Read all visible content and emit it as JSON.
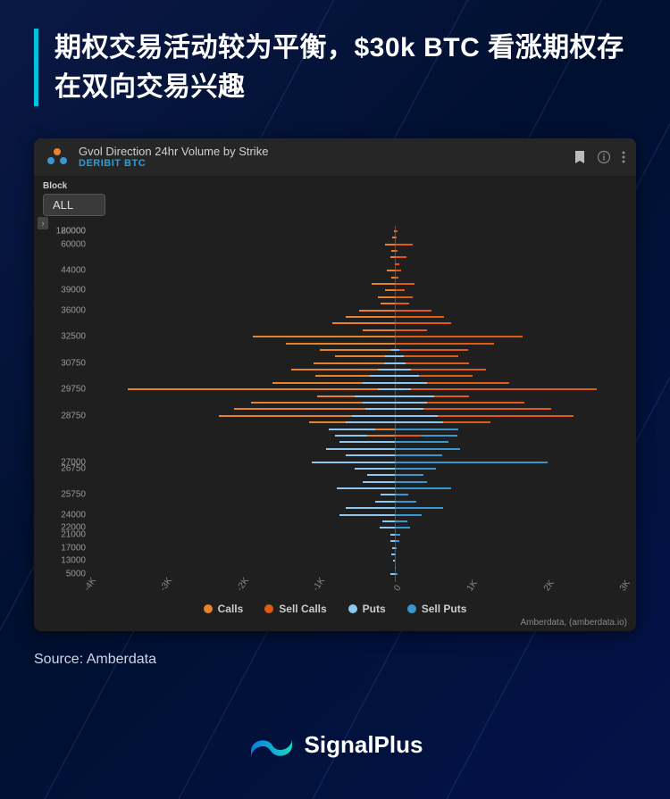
{
  "background_color": "#07154a",
  "title": "期权交易活动较为平衡，$30k BTC 看涨期权存在双向交易兴趣",
  "accent_color": "#00c2e0",
  "source_label": "Source: Amberdata",
  "brand_name": "SignalPlus",
  "chart": {
    "panel_bg": "#1f1f1f",
    "header_bg": "#262626",
    "title": "Gvol Direction 24hr Volume by Strike",
    "subtitle": "DERIBIT  BTC",
    "subtitle_color": "#2a9ed6",
    "block_label": "Block",
    "block_value": "ALL",
    "attribution": "Amberdata, (amberdata.io)",
    "legend": [
      {
        "label": "Calls",
        "color": "#e8822c"
      },
      {
        "label": "Sell Calls",
        "color": "#e05a16"
      },
      {
        "label": "Puts",
        "color": "#8ec8f0"
      },
      {
        "label": "Sell Puts",
        "color": "#3a95d0"
      }
    ],
    "x_axis": {
      "min": -4000,
      "max": 3000,
      "ticks": [
        -4000,
        -3000,
        -2000,
        -1000,
        0,
        1000,
        2000,
        3000
      ],
      "tick_labels": [
        "-4K",
        "-3K",
        "-2K",
        "-1K",
        "0",
        "1K",
        "2K",
        "3K"
      ],
      "tick_color": "#888",
      "zero_line_color": "#555"
    },
    "y_axis": {
      "ticks": [
        120000,
        80000,
        60000,
        44000,
        39000,
        36000,
        32500,
        30750,
        29750,
        28750,
        27000,
        26750,
        25750,
        24000,
        22000,
        21000,
        17000,
        13000,
        5000
      ],
      "tick_color": "#999"
    },
    "bars": [
      {
        "strike": 80000,
        "layers": [
          {
            "from": 0,
            "to": 40,
            "color": "#e05a16"
          },
          {
            "from": -10,
            "to": 0,
            "color": "#e8822c"
          }
        ]
      },
      {
        "strike": 70000,
        "layers": [
          {
            "from": -30,
            "to": 0,
            "color": "#e8822c"
          },
          {
            "from": 0,
            "to": 30,
            "color": "#e05a16"
          }
        ]
      },
      {
        "strike": 60000,
        "layers": [
          {
            "from": -120,
            "to": 0,
            "color": "#e8822c"
          },
          {
            "from": 0,
            "to": 240,
            "color": "#e05a16"
          }
        ]
      },
      {
        "strike": 55000,
        "layers": [
          {
            "from": -40,
            "to": 0,
            "color": "#e8822c"
          },
          {
            "from": 0,
            "to": 40,
            "color": "#e05a16"
          }
        ]
      },
      {
        "strike": 50000,
        "layers": [
          {
            "from": -50,
            "to": 0,
            "color": "#e8822c"
          },
          {
            "from": 0,
            "to": 160,
            "color": "#e05a16"
          }
        ]
      },
      {
        "strike": 48000,
        "layers": [
          {
            "from": 0,
            "to": 60,
            "color": "#e05a16"
          }
        ]
      },
      {
        "strike": 44000,
        "layers": [
          {
            "from": -100,
            "to": 0,
            "color": "#e8822c"
          },
          {
            "from": 0,
            "to": 90,
            "color": "#e05a16"
          }
        ]
      },
      {
        "strike": 42000,
        "layers": [
          {
            "from": -40,
            "to": 0,
            "color": "#e8822c"
          },
          {
            "from": 0,
            "to": 50,
            "color": "#e05a16"
          }
        ]
      },
      {
        "strike": 40000,
        "layers": [
          {
            "from": -300,
            "to": 0,
            "color": "#e8822c"
          },
          {
            "from": 0,
            "to": 260,
            "color": "#e05a16"
          }
        ]
      },
      {
        "strike": 39000,
        "layers": [
          {
            "from": -120,
            "to": 0,
            "color": "#e8822c"
          },
          {
            "from": 0,
            "to": 130,
            "color": "#e05a16"
          }
        ]
      },
      {
        "strike": 38000,
        "layers": [
          {
            "from": -220,
            "to": 0,
            "color": "#e8822c"
          },
          {
            "from": 0,
            "to": 240,
            "color": "#e05a16"
          }
        ]
      },
      {
        "strike": 37000,
        "layers": [
          {
            "from": -180,
            "to": 0,
            "color": "#e8822c"
          },
          {
            "from": 0,
            "to": 190,
            "color": "#e05a16"
          }
        ]
      },
      {
        "strike": 36000,
        "layers": [
          {
            "from": -460,
            "to": 0,
            "color": "#e8822c"
          },
          {
            "from": 0,
            "to": 480,
            "color": "#e05a16"
          }
        ]
      },
      {
        "strike": 35000,
        "layers": [
          {
            "from": -640,
            "to": 0,
            "color": "#e8822c"
          },
          {
            "from": 0,
            "to": 650,
            "color": "#e05a16"
          }
        ]
      },
      {
        "strike": 34000,
        "layers": [
          {
            "from": -820,
            "to": 0,
            "color": "#e8822c"
          },
          {
            "from": 0,
            "to": 740,
            "color": "#e05a16"
          }
        ]
      },
      {
        "strike": 33000,
        "layers": [
          {
            "from": -420,
            "to": 0,
            "color": "#e8822c"
          },
          {
            "from": 0,
            "to": 420,
            "color": "#e05a16"
          }
        ]
      },
      {
        "strike": 32500,
        "layers": [
          {
            "from": -1860,
            "to": 0,
            "color": "#e8822c"
          },
          {
            "from": 0,
            "to": 1680,
            "color": "#e05a16"
          }
        ]
      },
      {
        "strike": 32000,
        "layers": [
          {
            "from": -1420,
            "to": 0,
            "color": "#e8822c"
          },
          {
            "from": 0,
            "to": 1300,
            "color": "#e05a16"
          }
        ]
      },
      {
        "strike": 31500,
        "layers": [
          {
            "from": -980,
            "to": 0,
            "color": "#e8822c"
          },
          {
            "from": 0,
            "to": 960,
            "color": "#e05a16"
          },
          {
            "from": -60,
            "to": 60,
            "color": "#8ec8f0"
          }
        ]
      },
      {
        "strike": 31000,
        "layers": [
          {
            "from": -780,
            "to": 0,
            "color": "#e8822c"
          },
          {
            "from": 0,
            "to": 840,
            "color": "#e05a16"
          },
          {
            "from": -120,
            "to": 120,
            "color": "#8ec8f0"
          }
        ]
      },
      {
        "strike": 30750,
        "layers": [
          {
            "from": -1060,
            "to": 0,
            "color": "#e8822c"
          },
          {
            "from": 0,
            "to": 980,
            "color": "#e05a16"
          },
          {
            "from": -140,
            "to": 140,
            "color": "#8ec8f0"
          }
        ]
      },
      {
        "strike": 30500,
        "layers": [
          {
            "from": -1360,
            "to": 0,
            "color": "#e8822c"
          },
          {
            "from": 0,
            "to": 1200,
            "color": "#e05a16"
          },
          {
            "from": -220,
            "to": 220,
            "color": "#8ec8f0"
          }
        ]
      },
      {
        "strike": 30250,
        "layers": [
          {
            "from": -1040,
            "to": 0,
            "color": "#e8822c"
          },
          {
            "from": 0,
            "to": 1020,
            "color": "#e05a16"
          },
          {
            "from": -320,
            "to": 320,
            "color": "#8ec8f0"
          }
        ]
      },
      {
        "strike": 30000,
        "layers": [
          {
            "from": -1600,
            "to": 0,
            "color": "#e8822c"
          },
          {
            "from": 0,
            "to": 1500,
            "color": "#e05a16"
          },
          {
            "from": -420,
            "to": 420,
            "color": "#8ec8f0"
          }
        ]
      },
      {
        "strike": 29750,
        "layers": [
          {
            "from": -3500,
            "to": 0,
            "color": "#e8822c"
          },
          {
            "from": 0,
            "to": 2650,
            "color": "#e05a16"
          },
          {
            "from": -220,
            "to": 220,
            "color": "#8ec8f0"
          }
        ]
      },
      {
        "strike": 29500,
        "layers": [
          {
            "from": -1020,
            "to": 0,
            "color": "#e8822c"
          },
          {
            "from": 0,
            "to": 980,
            "color": "#e05a16"
          },
          {
            "from": -520,
            "to": 520,
            "color": "#8ec8f0"
          }
        ]
      },
      {
        "strike": 29250,
        "layers": [
          {
            "from": -1880,
            "to": 0,
            "color": "#e8822c"
          },
          {
            "from": 0,
            "to": 1700,
            "color": "#e05a16"
          },
          {
            "from": -420,
            "to": 420,
            "color": "#8ec8f0"
          }
        ]
      },
      {
        "strike": 29000,
        "layers": [
          {
            "from": -2100,
            "to": 0,
            "color": "#e8822c"
          },
          {
            "from": 0,
            "to": 2050,
            "color": "#e05a16"
          },
          {
            "from": -380,
            "to": 380,
            "color": "#8ec8f0"
          }
        ]
      },
      {
        "strike": 28750,
        "layers": [
          {
            "from": -2300,
            "to": 0,
            "color": "#e8822c"
          },
          {
            "from": 0,
            "to": 2350,
            "color": "#e05a16"
          },
          {
            "from": -560,
            "to": 560,
            "color": "#8ec8f0"
          }
        ]
      },
      {
        "strike": 28500,
        "layers": [
          {
            "from": -1120,
            "to": 0,
            "color": "#e8822c"
          },
          {
            "from": 0,
            "to": 1260,
            "color": "#e05a16"
          },
          {
            "from": -640,
            "to": 640,
            "color": "#8ec8f0"
          }
        ]
      },
      {
        "strike": 28250,
        "layers": [
          {
            "from": -860,
            "to": 0,
            "color": "#8ec8f0"
          },
          {
            "from": 0,
            "to": 840,
            "color": "#3a95d0"
          },
          {
            "from": -260,
            "to": 0,
            "color": "#e8822c"
          }
        ]
      },
      {
        "strike": 28000,
        "layers": [
          {
            "from": -780,
            "to": 0,
            "color": "#8ec8f0"
          },
          {
            "from": 0,
            "to": 820,
            "color": "#3a95d0"
          },
          {
            "from": -360,
            "to": 0,
            "color": "#e8822c"
          },
          {
            "from": 0,
            "to": 340,
            "color": "#e05a16"
          }
        ]
      },
      {
        "strike": 27750,
        "layers": [
          {
            "from": -720,
            "to": 0,
            "color": "#8ec8f0"
          },
          {
            "from": 0,
            "to": 700,
            "color": "#3a95d0"
          }
        ]
      },
      {
        "strike": 27500,
        "layers": [
          {
            "from": -460,
            "to": 0,
            "color": "#e8822c"
          },
          {
            "from": 0,
            "to": 440,
            "color": "#e05a16"
          },
          {
            "from": -900,
            "to": 0,
            "color": "#8ec8f0"
          },
          {
            "from": 0,
            "to": 860,
            "color": "#3a95d0"
          }
        ]
      },
      {
        "strike": 27250,
        "layers": [
          {
            "from": -640,
            "to": 0,
            "color": "#8ec8f0"
          },
          {
            "from": 0,
            "to": 620,
            "color": "#3a95d0"
          }
        ]
      },
      {
        "strike": 27000,
        "layers": [
          {
            "from": -480,
            "to": 0,
            "color": "#e8822c"
          },
          {
            "from": 0,
            "to": 2000,
            "color": "#3a95d0"
          },
          {
            "from": -1080,
            "to": 0,
            "color": "#8ec8f0"
          }
        ]
      },
      {
        "strike": 26750,
        "layers": [
          {
            "from": -520,
            "to": 0,
            "color": "#8ec8f0"
          },
          {
            "from": 0,
            "to": 540,
            "color": "#3a95d0"
          }
        ]
      },
      {
        "strike": 26500,
        "layers": [
          {
            "from": -360,
            "to": 0,
            "color": "#8ec8f0"
          },
          {
            "from": 0,
            "to": 380,
            "color": "#3a95d0"
          }
        ]
      },
      {
        "strike": 26250,
        "layers": [
          {
            "from": -420,
            "to": 0,
            "color": "#8ec8f0"
          },
          {
            "from": 0,
            "to": 430,
            "color": "#3a95d0"
          }
        ]
      },
      {
        "strike": 26000,
        "layers": [
          {
            "from": -760,
            "to": 0,
            "color": "#8ec8f0"
          },
          {
            "from": 0,
            "to": 740,
            "color": "#3a95d0"
          }
        ]
      },
      {
        "strike": 25750,
        "layers": [
          {
            "from": -180,
            "to": 0,
            "color": "#8ec8f0"
          },
          {
            "from": 0,
            "to": 180,
            "color": "#3a95d0"
          }
        ]
      },
      {
        "strike": 25500,
        "layers": [
          {
            "from": -260,
            "to": 0,
            "color": "#8ec8f0"
          },
          {
            "from": 0,
            "to": 280,
            "color": "#3a95d0"
          }
        ]
      },
      {
        "strike": 25000,
        "layers": [
          {
            "from": -640,
            "to": 0,
            "color": "#8ec8f0"
          },
          {
            "from": 0,
            "to": 640,
            "color": "#3a95d0"
          }
        ]
      },
      {
        "strike": 24000,
        "layers": [
          {
            "from": -720,
            "to": 0,
            "color": "#8ec8f0"
          },
          {
            "from": 0,
            "to": 360,
            "color": "#3a95d0"
          }
        ]
      },
      {
        "strike": 23000,
        "layers": [
          {
            "from": -160,
            "to": 0,
            "color": "#8ec8f0"
          },
          {
            "from": 0,
            "to": 170,
            "color": "#3a95d0"
          }
        ]
      },
      {
        "strike": 22000,
        "layers": [
          {
            "from": -200,
            "to": 0,
            "color": "#8ec8f0"
          },
          {
            "from": 0,
            "to": 200,
            "color": "#3a95d0"
          }
        ]
      },
      {
        "strike": 21000,
        "layers": [
          {
            "from": -60,
            "to": 0,
            "color": "#8ec8f0"
          },
          {
            "from": 0,
            "to": 70,
            "color": "#3a95d0"
          }
        ]
      },
      {
        "strike": 20000,
        "layers": [
          {
            "from": -60,
            "to": 0,
            "color": "#8ec8f0"
          },
          {
            "from": 0,
            "to": 60,
            "color": "#3a95d0"
          }
        ]
      },
      {
        "strike": 17000,
        "layers": [
          {
            "from": -30,
            "to": 0,
            "color": "#8ec8f0"
          },
          {
            "from": 0,
            "to": 30,
            "color": "#3a95d0"
          }
        ]
      },
      {
        "strike": 15000,
        "layers": [
          {
            "from": -40,
            "to": 0,
            "color": "#8ec8f0"
          },
          {
            "from": 0,
            "to": 20,
            "color": "#3a95d0"
          }
        ]
      },
      {
        "strike": 13000,
        "layers": [
          {
            "from": -20,
            "to": 0,
            "color": "#8ec8f0"
          }
        ]
      },
      {
        "strike": 10000,
        "layers": [
          {
            "from": 0,
            "to": 20,
            "color": "#3a95d0"
          }
        ]
      },
      {
        "strike": 5000,
        "layers": [
          {
            "from": -50,
            "to": 0,
            "color": "#8ec8f0"
          },
          {
            "from": 0,
            "to": 40,
            "color": "#3a95d0"
          }
        ]
      }
    ]
  }
}
